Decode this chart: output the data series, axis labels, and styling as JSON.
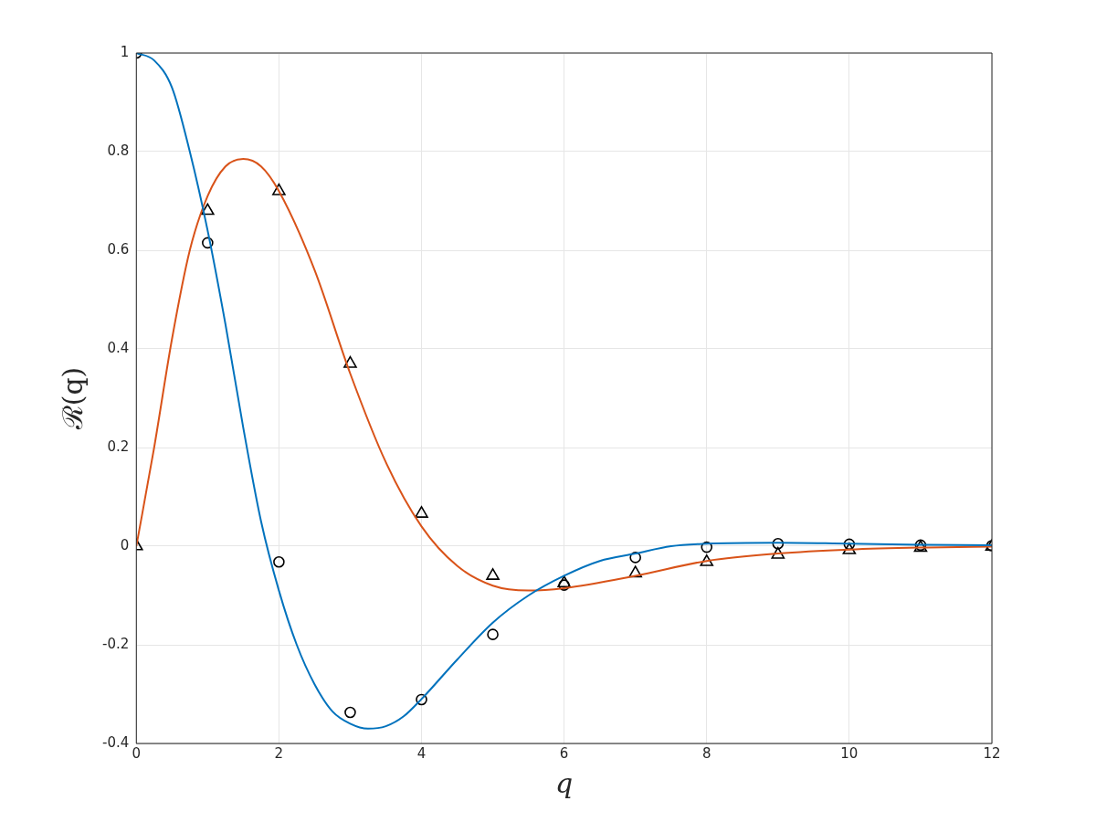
{
  "chart_data": {
    "type": "line",
    "xlabel": "q",
    "ylabel": "ℛ(q)",
    "xlim": [
      0,
      12
    ],
    "xticks": [
      0,
      2,
      4,
      6,
      8,
      10,
      12
    ],
    "ylim": [
      -0.4,
      1
    ],
    "yticks": [
      -0.4,
      -0.2,
      0,
      0.2,
      0.4,
      0.6,
      0.8,
      1
    ],
    "grid": true,
    "legend": false,
    "line_style": "solid",
    "series": [
      {
        "type": "line",
        "marker": "none",
        "color": "#0072bd",
        "x": [
          0,
          0.25,
          0.5,
          0.75,
          1,
          1.25,
          1.5,
          1.75,
          2,
          2.25,
          2.5,
          2.75,
          3,
          3.25,
          3.5,
          3.75,
          4,
          4.5,
          5,
          5.5,
          6,
          6.5,
          7,
          7.5,
          8,
          9,
          10,
          11,
          12
        ],
        "values": [
          1,
          0.985,
          0.93,
          0.8,
          0.64,
          0.45,
          0.24,
          0.05,
          -0.09,
          -0.2,
          -0.28,
          -0.335,
          -0.36,
          -0.37,
          -0.365,
          -0.345,
          -0.31,
          -0.23,
          -0.155,
          -0.1,
          -0.06,
          -0.03,
          -0.015,
          0,
          0.005,
          0.007,
          0.005,
          0.003,
          0.002
        ]
      },
      {
        "type": "line",
        "marker": "none",
        "color": "#d95319",
        "x": [
          0,
          0.25,
          0.5,
          0.75,
          1,
          1.25,
          1.5,
          1.75,
          2,
          2.5,
          3,
          3.5,
          4,
          4.5,
          5,
          5.5,
          6,
          7,
          8,
          9,
          10,
          11,
          12
        ],
        "values": [
          0,
          0.2,
          0.42,
          0.6,
          0.71,
          0.77,
          0.785,
          0.77,
          0.72,
          0.56,
          0.35,
          0.17,
          0.04,
          -0.04,
          -0.08,
          -0.09,
          -0.085,
          -0.06,
          -0.03,
          -0.015,
          -0.007,
          -0.003,
          -0.001
        ]
      },
      {
        "type": "scatter",
        "marker": "circle",
        "color": "#000000",
        "x": [
          0,
          1,
          2,
          3,
          4,
          5,
          6,
          7,
          8,
          9,
          10,
          11,
          12
        ],
        "values": [
          1,
          0.615,
          -0.032,
          -0.337,
          -0.311,
          -0.179,
          -0.079,
          -0.023,
          -0.002,
          0.005,
          0.004,
          0.002,
          0.001
        ]
      },
      {
        "type": "scatter",
        "marker": "triangle",
        "color": "#000000",
        "x": [
          0,
          1,
          2,
          3,
          4,
          5,
          6,
          7,
          8,
          9,
          10,
          11,
          12
        ],
        "values": [
          0,
          0.68,
          0.72,
          0.37,
          0.066,
          -0.06,
          -0.075,
          -0.055,
          -0.032,
          -0.017,
          -0.008,
          -0.003,
          -0.001
        ]
      }
    ]
  }
}
